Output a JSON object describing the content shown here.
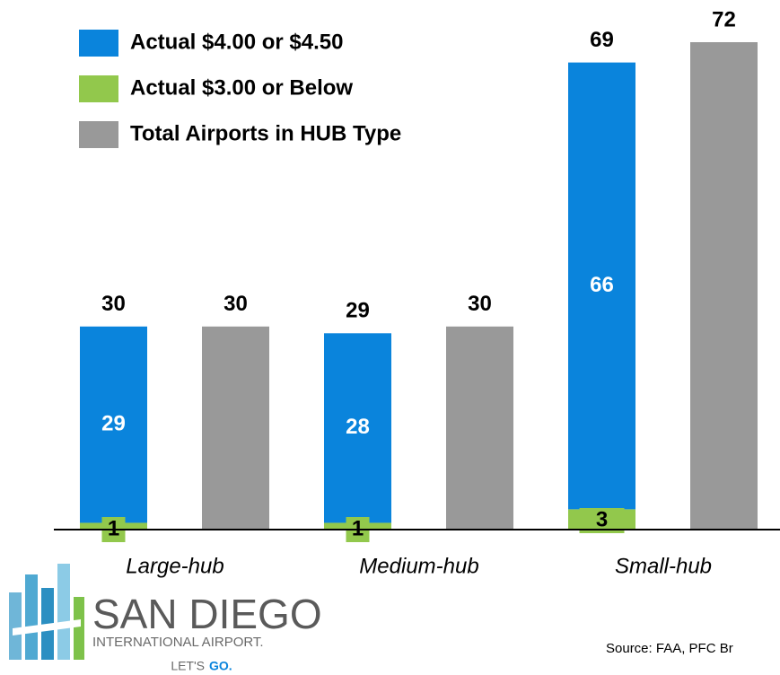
{
  "chart_data": {
    "type": "bar",
    "categories": [
      "Large-hub",
      "Medium-hub",
      "Small-hub"
    ],
    "series": [
      {
        "name": "Actual $4.00 or $4.50",
        "color": "#0a84dc",
        "values": [
          29,
          28,
          66
        ]
      },
      {
        "name": "Actual $3.00 or Below",
        "color": "#92c84c",
        "values": [
          1,
          1,
          3
        ]
      },
      {
        "name": "Total Airports in HUB Type",
        "color": "#999999",
        "values": [
          30,
          30,
          72
        ]
      }
    ],
    "stack_totals": [
      30,
      29,
      69
    ],
    "ylim": [
      0,
      72
    ],
    "grid": false,
    "legend": "upper left",
    "source": "Source:  FAA, PFC Br",
    "logo": {
      "name": "SAN DIEGO",
      "subtitle": "INTERNATIONAL AIRPORT.",
      "tagline_a": "LET'S",
      "tagline_b": "GO."
    }
  }
}
